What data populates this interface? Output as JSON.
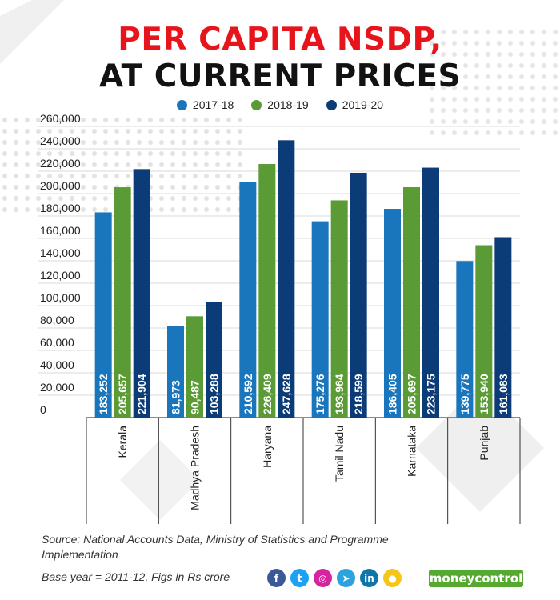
{
  "header": {
    "title_line1": "PER CAPITA NSDP,",
    "title_line2": "AT CURRENT PRICES"
  },
  "colors": {
    "title": "#e8141b",
    "s2017": "#1976bc",
    "s2018": "#5a9b35",
    "s2019": "#0c3c78",
    "brand": "#55a830"
  },
  "chart_data": {
    "type": "bar",
    "title": "PER CAPITA NSDP, AT CURRENT PRICES",
    "categories": [
      "Kerala",
      "Madhya Pradesh",
      "Haryana",
      "Tamil Nadu",
      "Karnataka",
      "Punjab"
    ],
    "series": [
      {
        "name": "2017-18",
        "color": "#1976bc",
        "values": [
          183252,
          81973,
          210592,
          175276,
          186405,
          139775
        ],
        "labels": [
          "183,252",
          "81,973",
          "210,592",
          "175,276",
          "186,405",
          "139,775"
        ]
      },
      {
        "name": "2018-19",
        "color": "#5a9b35",
        "values": [
          205657,
          90487,
          226409,
          193964,
          205697,
          153940
        ],
        "labels": [
          "205,657",
          "90,487",
          "226,409",
          "193,964",
          "205,697",
          "153,940"
        ]
      },
      {
        "name": "2019-20",
        "color": "#0c3c78",
        "values": [
          221904,
          103288,
          247628,
          218599,
          223175,
          161083
        ],
        "labels": [
          "221,904",
          "103,288",
          "247,628",
          "218,599",
          "223,175",
          "161,083"
        ]
      }
    ],
    "yticks": [
      0,
      20000,
      40000,
      60000,
      80000,
      100000,
      120000,
      140000,
      160000,
      180000,
      200000,
      220000,
      240000,
      260000
    ],
    "ytick_labels": [
      "0",
      "20,000",
      "40,000",
      "60,000",
      "80,000",
      "100,000",
      "120,000",
      "140,000",
      "160,000",
      "180,000",
      "200,000",
      "220,000",
      "240,000",
      "260,000"
    ],
    "ylim": [
      0,
      260000
    ],
    "legend": "top-center",
    "grid": true,
    "xlabel": "",
    "ylabel": ""
  },
  "footer": {
    "source": "Source: National Accounts Data, Ministry of Statistics and Programme Implementation",
    "base": "Base year  = 2011-12, Figs in Rs crore",
    "brand": "moneycontrol",
    "social": [
      {
        "icon": "facebook-icon",
        "glyph": "f",
        "color": "#3b5998"
      },
      {
        "icon": "twitter-icon",
        "glyph": "t",
        "color": "#1da1f2"
      },
      {
        "icon": "instagram-icon",
        "glyph": "◎",
        "color": "#d6249f"
      },
      {
        "icon": "telegram-icon",
        "glyph": "➤",
        "color": "#2aa3df"
      },
      {
        "icon": "linkedin-icon",
        "glyph": "in",
        "color": "#0e76a8"
      },
      {
        "icon": "koo-icon",
        "glyph": "●",
        "color": "#f5c518"
      }
    ]
  }
}
